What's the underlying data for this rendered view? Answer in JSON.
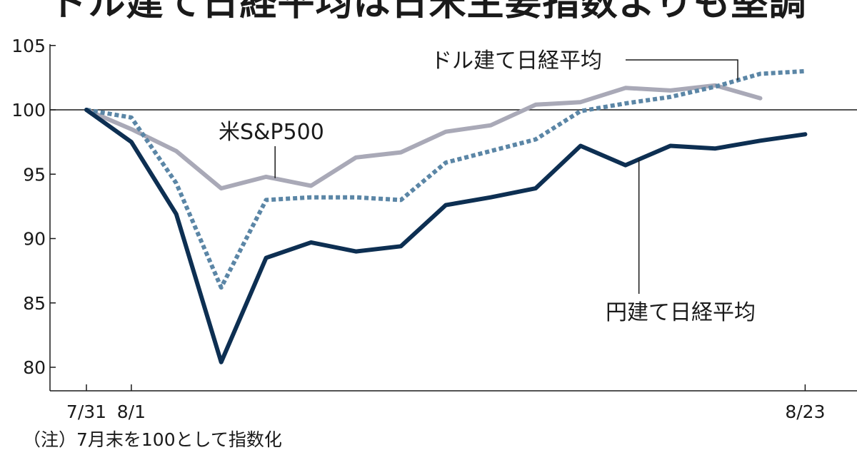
{
  "chart_data": {
    "type": "line",
    "title": "ドル建て日経平均は日米主要指数よりも堅調",
    "note": "（注）7月末を100として指数化",
    "ylim": [
      78,
      106
    ],
    "yticks": [
      80,
      85,
      90,
      95,
      100,
      105
    ],
    "reference_line": 100,
    "x": [
      0,
      1,
      2,
      3,
      4,
      5,
      6,
      7,
      8,
      9,
      10,
      11,
      12,
      13,
      14,
      15,
      16
    ],
    "x_tick_labels": [
      {
        "x": 0,
        "label": "7/31"
      },
      {
        "x": 1,
        "label": "8/1"
      },
      {
        "x": 16,
        "label": "8/23"
      }
    ],
    "series": [
      {
        "name": "米S&P500",
        "color": "#a9a9b7",
        "style": "solid",
        "values": [
          100,
          98.5,
          96.8,
          93.9,
          94.8,
          94.1,
          96.3,
          96.7,
          98.3,
          98.8,
          100.4,
          100.6,
          101.7,
          101.5,
          101.9,
          100.9,
          null
        ]
      },
      {
        "name": "ドル建て日経平均",
        "color": "#5b86a6",
        "style": "dotted",
        "values": [
          100,
          99.4,
          94.3,
          86.2,
          93.0,
          93.2,
          93.2,
          93.0,
          95.9,
          96.8,
          97.7,
          99.9,
          100.5,
          101.0,
          101.8,
          102.8,
          103.0
        ]
      },
      {
        "name": "円建て日経平均",
        "color": "#0d2f52",
        "style": "solid",
        "values": [
          100,
          97.5,
          91.9,
          80.4,
          88.5,
          89.7,
          89.0,
          89.4,
          92.6,
          93.2,
          93.9,
          97.2,
          95.7,
          97.2,
          97.0,
          97.6,
          98.1
        ]
      }
    ]
  }
}
